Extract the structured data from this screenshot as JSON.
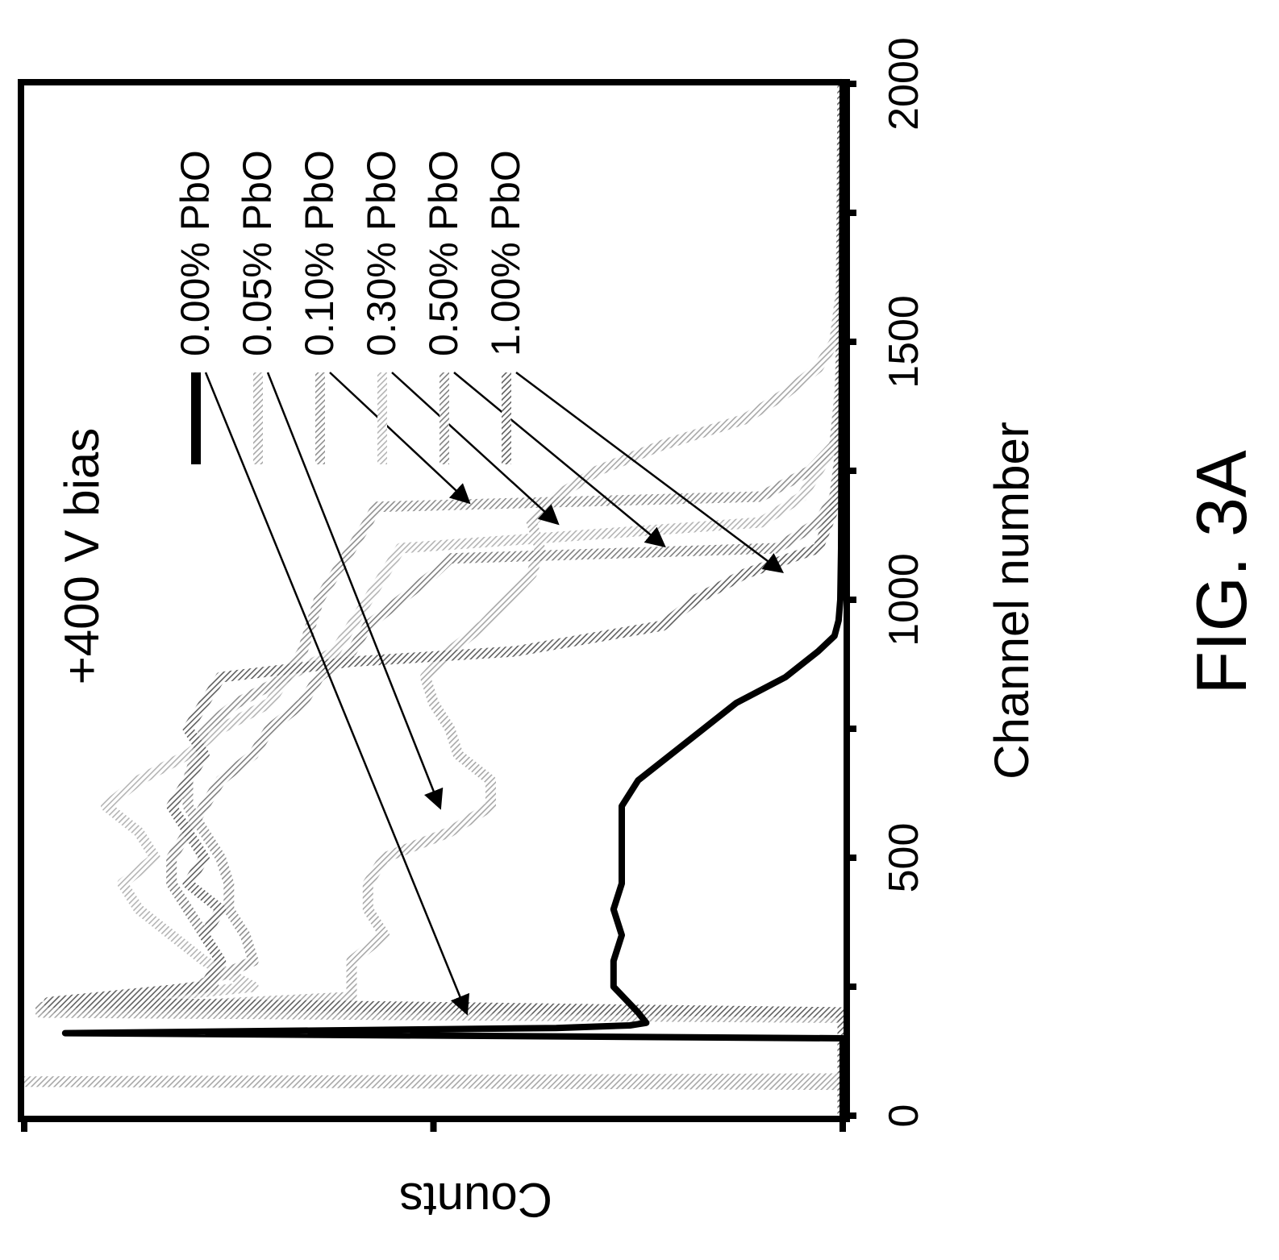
{
  "figure": {
    "label": "FIG. 3A"
  },
  "chart_data": {
    "type": "line",
    "xlabel": "Channel number",
    "ylabel": "Counts",
    "annotation": "+400 V bias",
    "xlim": [
      0,
      2000
    ],
    "ylim": [
      0,
      100
    ],
    "x_ticks": [
      "0",
      "500",
      "1000",
      "1500",
      "2000"
    ],
    "orientation": "rotated 90 degrees clockwise",
    "legend_placement": "top-right (in rotated view)",
    "series": [
      {
        "name": "0.00% PbO",
        "color": "#000000",
        "style": "solid",
        "x": [
          0,
          150,
          160,
          170,
          175,
          180,
          200,
          250,
          300,
          350,
          400,
          450,
          500,
          550,
          600,
          650,
          700,
          750,
          800,
          850,
          900,
          930,
          960,
          1000,
          1100,
          1500,
          2000
        ],
        "y": [
          0,
          0,
          95,
          35,
          26,
          24,
          25,
          28,
          28,
          27,
          28,
          27,
          27,
          27,
          27,
          25,
          21,
          17,
          13,
          7,
          3,
          1,
          0.5,
          0.3,
          0.2,
          0.1,
          0
        ]
      },
      {
        "name": "0.05% PbO",
        "color": "#a8a8a8",
        "style": "hatched",
        "x": [
          0,
          60,
          66,
          72,
          150,
          190,
          200,
          230,
          300,
          350,
          400,
          450,
          500,
          550,
          600,
          650,
          700,
          750,
          800,
          850,
          900,
          950,
          1000,
          1050,
          1100,
          1150,
          1200,
          1250,
          1300,
          1350,
          1400,
          1450,
          1500,
          1600,
          2000
        ],
        "y": [
          0,
          0,
          100,
          0,
          0,
          0,
          98,
          60,
          60,
          56,
          58,
          58,
          56,
          48,
          43,
          43,
          47,
          48,
          50,
          51,
          48,
          44,
          41,
          38,
          37,
          38,
          35,
          30,
          22,
          12,
          7,
          3,
          1,
          0.2,
          0
        ]
      },
      {
        "name": "0.10% PbO",
        "color": "#909090",
        "style": "hatched",
        "x": [
          0,
          200,
          210,
          250,
          300,
          350,
          400,
          450,
          500,
          550,
          600,
          650,
          700,
          750,
          800,
          850,
          900,
          950,
          1000,
          1050,
          1100,
          1150,
          1180,
          1200,
          1250,
          1300,
          1400,
          2000
        ],
        "y": [
          0,
          0,
          98,
          79,
          72,
          73,
          75,
          75,
          76,
          78,
          80,
          80,
          79,
          78,
          74,
          68,
          66,
          65,
          64,
          62,
          60,
          58,
          57,
          10,
          4,
          1,
          0.3,
          0
        ]
      },
      {
        "name": "0.30% PbO",
        "color": "#b4b4b4",
        "style": "hatched",
        "x": [
          0,
          200,
          210,
          250,
          300,
          350,
          400,
          450,
          500,
          550,
          600,
          650,
          700,
          750,
          800,
          850,
          900,
          950,
          1000,
          1050,
          1100,
          1150,
          1200,
          1250,
          1300,
          1400,
          1500,
          2000
        ],
        "y": [
          0,
          0,
          96,
          72,
          78,
          82,
          86,
          88,
          84,
          86,
          90,
          86,
          80,
          76,
          70,
          68,
          62,
          60,
          58,
          56,
          54,
          10,
          5,
          3,
          1,
          0.4,
          0.1,
          0
        ]
      },
      {
        "name": "0.50% PbO",
        "color": "#808080",
        "style": "hatched",
        "x": [
          0,
          200,
          215,
          250,
          300,
          350,
          400,
          450,
          500,
          550,
          600,
          650,
          700,
          750,
          800,
          850,
          900,
          950,
          1000,
          1050,
          1080,
          1100,
          1150,
          1200,
          1300,
          2000
        ],
        "y": [
          0,
          0,
          95,
          77,
          76,
          78,
          80,
          82,
          82,
          80,
          78,
          76,
          72,
          70,
          66,
          64,
          60,
          58,
          54,
          50,
          48,
          8,
          3,
          1,
          0.2,
          0
        ]
      },
      {
        "name": "1.00% PbO",
        "color": "#606060",
        "style": "hatched",
        "x": [
          0,
          200,
          220,
          250,
          300,
          350,
          400,
          450,
          500,
          550,
          600,
          650,
          700,
          750,
          800,
          850,
          880,
          900,
          950,
          1000,
          1050,
          1100,
          1200,
          1500,
          2000
        ],
        "y": [
          0,
          0,
          97,
          78,
          76,
          78,
          76,
          80,
          78,
          80,
          82,
          80,
          78,
          80,
          78,
          76,
          60,
          40,
          22,
          18,
          12,
          3,
          0.5,
          0.1,
          0
        ]
      }
    ]
  }
}
